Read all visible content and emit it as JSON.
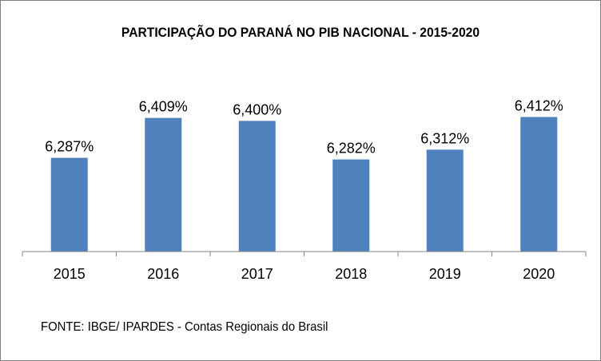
{
  "chart_data": {
    "type": "bar",
    "title": "PARTICIPAÇÃO DO PARANÁ NO PIB NACIONAL - 2015-2020",
    "categories": [
      "2015",
      "2016",
      "2017",
      "2018",
      "2019",
      "2020"
    ],
    "values": [
      6.287,
      6.409,
      6.4,
      6.282,
      6.312,
      6.412
    ],
    "data_labels": [
      "6,287%",
      "6,409%",
      "6,400%",
      "6,282%",
      "6,312%",
      "6,412%"
    ],
    "ylim": [
      6.0,
      6.44
    ],
    "xlabel": "",
    "ylabel": "",
    "grid": false,
    "legend": "none",
    "bar_color": "#4f81bd",
    "source": "FONTE: IBGE/  IPARDES  - Contas Regionais do Brasil"
  }
}
